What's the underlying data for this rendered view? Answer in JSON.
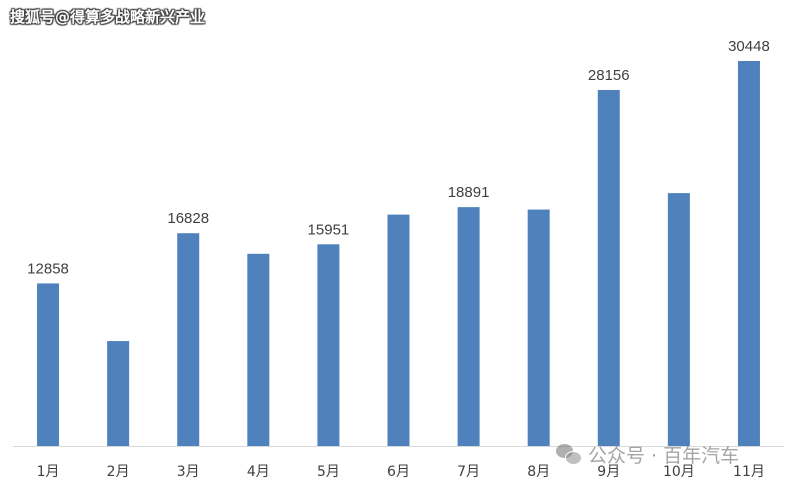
{
  "watermark": {
    "top_text": "搜狐号@得算多战略新兴产业",
    "bottom_text": "公众号 · 百年汽车"
  },
  "chart_data": {
    "type": "bar",
    "categories": [
      "1月",
      "2月",
      "3月",
      "4月",
      "5月",
      "6月",
      "7月",
      "8月",
      "9月",
      "10月",
      "11月"
    ],
    "values": [
      12858,
      8300,
      16828,
      15200,
      15951,
      18300,
      18891,
      18700,
      28156,
      20000,
      30448
    ],
    "data_labels": [
      "12858",
      "",
      "16828",
      "",
      "15951",
      "",
      "18891",
      "",
      "28156",
      "",
      "30448"
    ],
    "ylim": [
      0,
      30448
    ],
    "bar_color": "#4f81bd",
    "axis_color": "#d9d9d9",
    "grid": false,
    "legend": "none",
    "title": "",
    "xlabel": "",
    "ylabel": ""
  }
}
